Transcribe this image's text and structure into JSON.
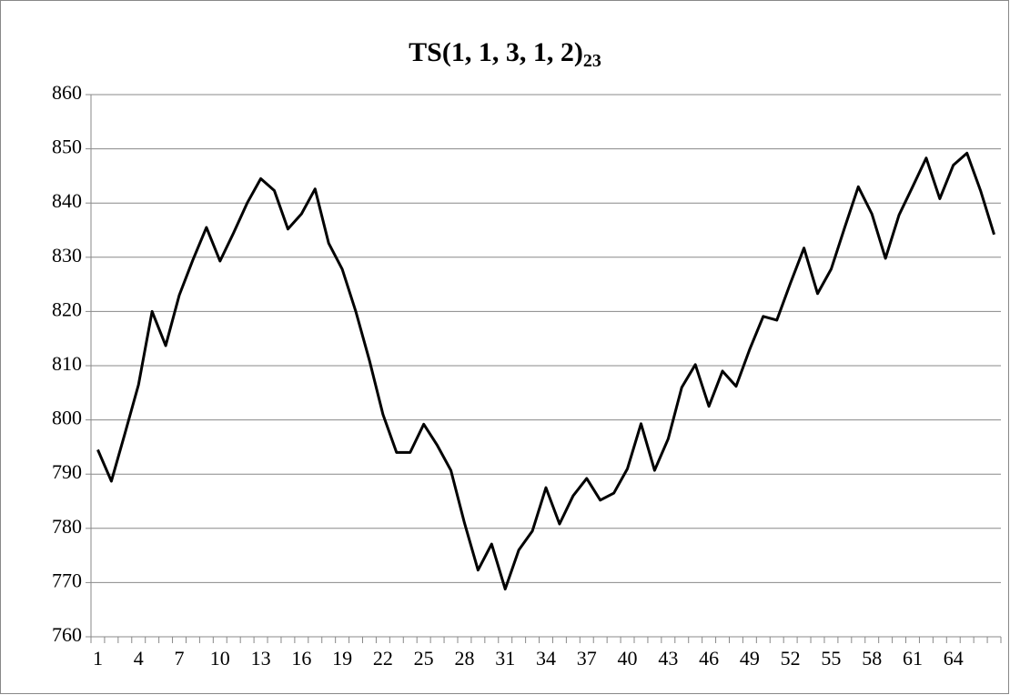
{
  "chart_data": {
    "type": "line",
    "title": "TS(1, 1, 3, 1, 2)",
    "title_subscript": "23",
    "categories": [
      "1",
      null,
      null,
      "4",
      null,
      null,
      "7",
      null,
      null,
      "10",
      null,
      null,
      "13",
      null,
      null,
      "16",
      null,
      null,
      "19",
      null,
      null,
      "22",
      null,
      null,
      "25",
      null,
      null,
      "28",
      null,
      null,
      "31",
      null,
      null,
      "34",
      null,
      null,
      "37",
      null,
      null,
      "40",
      null,
      null,
      "43",
      null,
      null,
      "46",
      null,
      null,
      "49",
      null,
      null,
      "52",
      null,
      null,
      "55",
      null,
      null,
      "58",
      null,
      null,
      "61",
      null,
      null,
      "64",
      null,
      null,
      null
    ],
    "series": [
      {
        "name": null,
        "color": "#000000",
        "values": [
          794.5,
          788.7,
          797.5,
          806.5,
          820,
          813.7,
          823,
          829.5,
          835.5,
          829.3,
          834.5,
          840,
          844.5,
          842.3,
          835.2,
          838,
          842.6,
          832.6,
          827.8,
          820,
          811,
          801,
          794,
          794,
          799.2,
          795.3,
          790.7,
          781,
          772.3,
          777.1,
          768.8,
          776,
          779.5,
          787.5,
          780.8,
          786,
          789.2,
          785.2,
          786.5,
          791,
          799.3,
          790.7,
          796.5,
          806,
          810.2,
          802.5,
          809,
          806.2,
          813,
          819.1,
          818.4,
          825.2,
          831.7,
          823.3,
          827.8,
          835.5,
          843,
          838,
          829.8,
          837.8,
          843,
          848.3,
          840.8,
          847,
          849.2,
          842.3,
          834.2
        ]
      }
    ],
    "ylim": [
      760,
      860
    ],
    "yticks": [
      760,
      770,
      780,
      790,
      800,
      810,
      820,
      830,
      840,
      850,
      860
    ],
    "grid": true
  }
}
